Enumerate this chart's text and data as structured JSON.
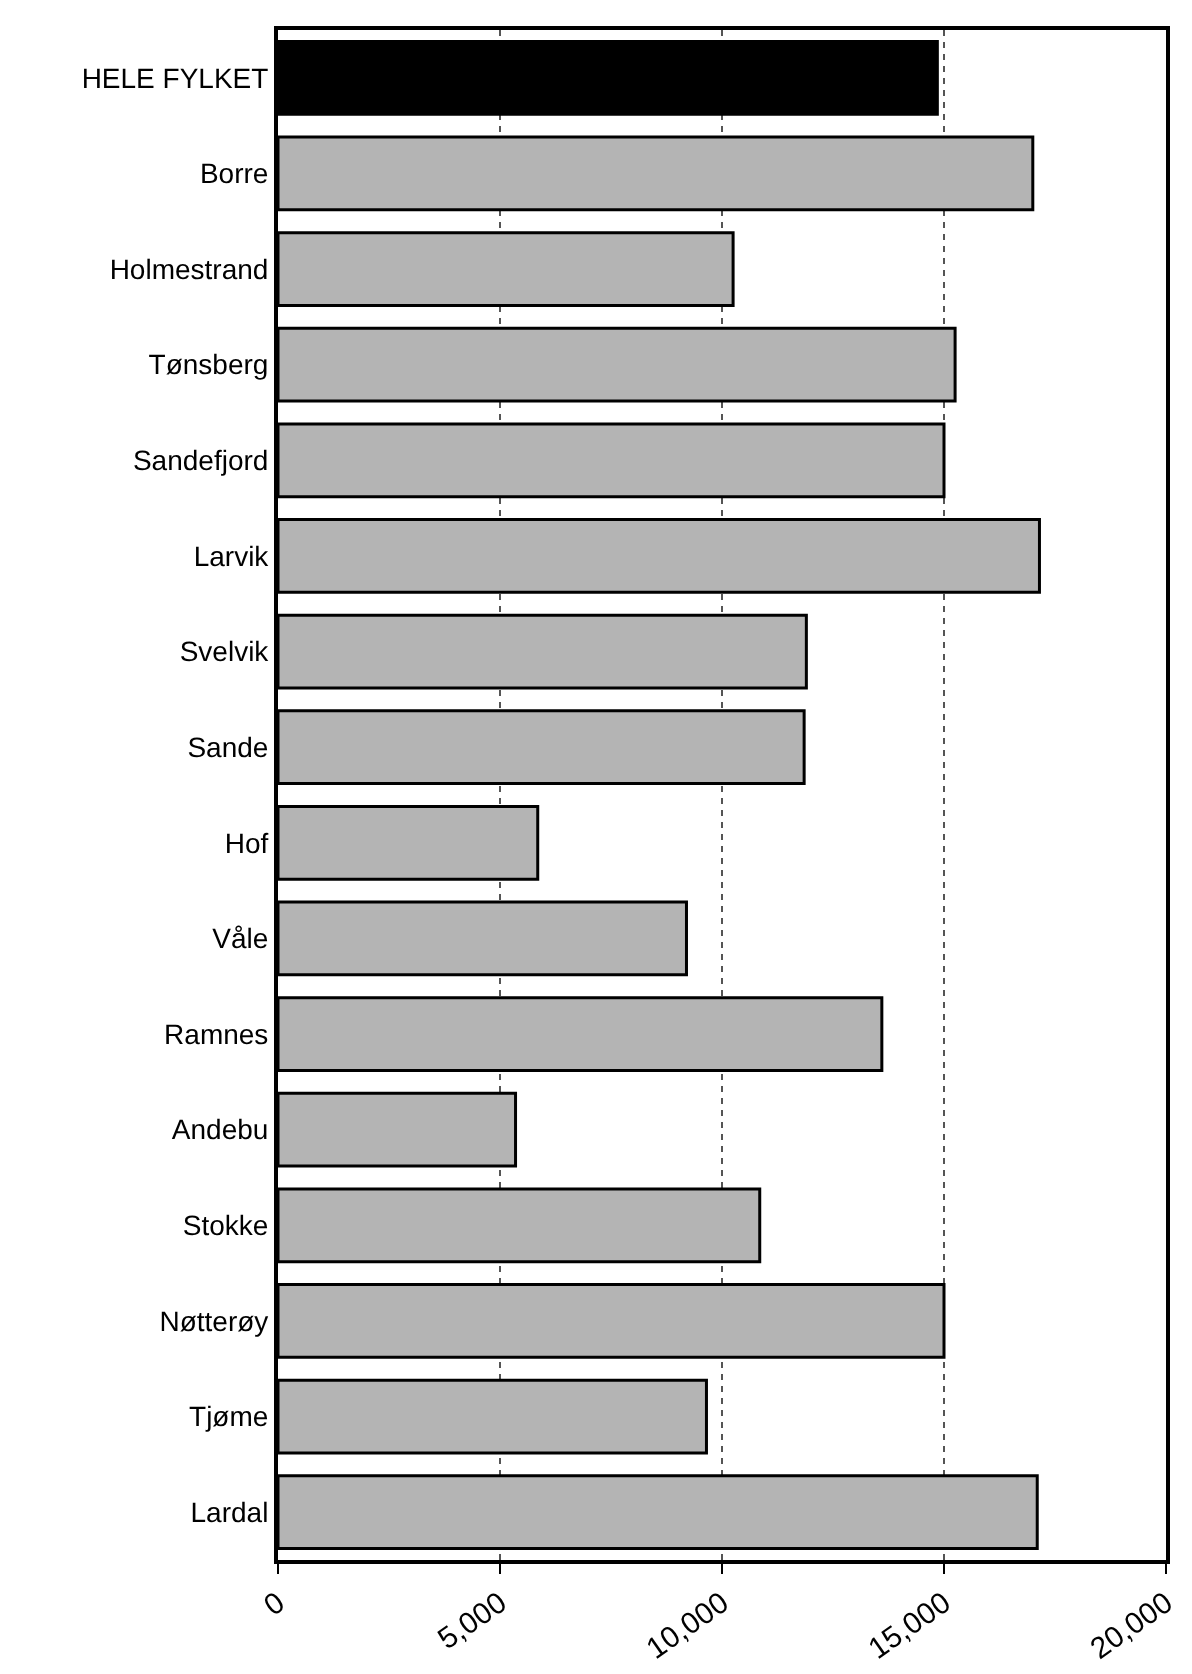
{
  "chart_data": {
    "type": "bar",
    "orientation": "horizontal",
    "categories": [
      "HELE FYLKET",
      "Borre",
      "Holmestrand",
      "Tønsberg",
      "Sandefjord",
      "Larvik",
      "Svelvik",
      "Sande",
      "Hof",
      "Våle",
      "Ramnes",
      "Andebu",
      "Stokke",
      "Nøtterøy",
      "Tjøme",
      "Lardal"
    ],
    "values": [
      14850,
      17000,
      10250,
      15250,
      15000,
      17150,
      11900,
      11850,
      5850,
      9200,
      13600,
      5350,
      10850,
      15000,
      9650,
      17100
    ],
    "colors": [
      "#000000",
      "#b4b4b4",
      "#b4b4b4",
      "#b4b4b4",
      "#b4b4b4",
      "#b4b4b4",
      "#b4b4b4",
      "#b4b4b4",
      "#b4b4b4",
      "#b4b4b4",
      "#b4b4b4",
      "#b4b4b4",
      "#b4b4b4",
      "#b4b4b4",
      "#b4b4b4",
      "#b4b4b4"
    ],
    "xlim": [
      0,
      20000
    ],
    "xticks": [
      {
        "value": 0,
        "label": "0"
      },
      {
        "value": 5000,
        "label": "5,000"
      },
      {
        "value": 10000,
        "label": "10,000"
      },
      {
        "value": 15000,
        "label": "15,000"
      },
      {
        "value": 20000,
        "label": "20,000"
      }
    ],
    "grid": "x"
  }
}
